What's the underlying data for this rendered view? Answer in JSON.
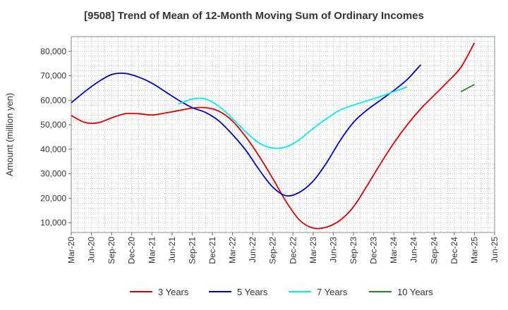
{
  "chart_data": {
    "type": "line",
    "title": "[9508]  Trend of Mean of 12-Month Moving Sum of Ordinary Incomes",
    "xlabel": "",
    "ylabel": "Amount (million yen)",
    "ylim": [
      6000,
      86000
    ],
    "yticks": [
      10000,
      20000,
      30000,
      40000,
      50000,
      60000,
      70000,
      80000
    ],
    "ytick_labels": [
      "10,000",
      "20,000",
      "30,000",
      "40,000",
      "50,000",
      "60,000",
      "70,000",
      "80,000"
    ],
    "x_tick_labels": [
      "Mar-20",
      "Jun-20",
      "Sep-20",
      "Dec-20",
      "Mar-21",
      "Jun-21",
      "Sep-21",
      "Dec-21",
      "Mar-22",
      "Jun-22",
      "Sep-22",
      "Dec-22",
      "Mar-23",
      "Jun-23",
      "Sep-23",
      "Dec-23",
      "Mar-24",
      "Jun-24",
      "Sep-24",
      "Dec-24",
      "Mar-25",
      "Jun-25"
    ],
    "grid": true,
    "legend_position": "bottom",
    "series": [
      {
        "name": "3 Years",
        "color": "#dd0000",
        "start_index": 0,
        "values": [
          53800,
          51000,
          50800,
          52800,
          54500,
          54500,
          54000,
          54800,
          55800,
          56800,
          57000,
          55500,
          51500,
          45000,
          37000,
          28000,
          18500,
          11000,
          7800,
          8200,
          11000,
          16500,
          25000,
          34000,
          42500,
          50000,
          56500,
          62000,
          67500,
          73500,
          83500
        ]
      },
      {
        "name": "5 Years",
        "color": "#0000cc",
        "start_index": 0,
        "values": [
          59000,
          63500,
          67500,
          70500,
          71000,
          69500,
          67000,
          63500,
          60000,
          57000,
          55000,
          51500,
          46000,
          39500,
          31500,
          24500,
          21000,
          22500,
          27000,
          34500,
          43500,
          51000,
          56000,
          60000,
          64000,
          68500,
          74500
        ]
      },
      {
        "name": "7 Years",
        "color": "#00eeee",
        "start_index": 8,
        "values": [
          58500,
          60500,
          60500,
          57500,
          52500,
          47000,
          42500,
          40500,
          41000,
          44000,
          48500,
          52500,
          56000,
          58000,
          59800,
          61500,
          63500,
          65500
        ]
      },
      {
        "name": "10 Years",
        "color": "#228822",
        "start_index": 29,
        "values": [
          63500,
          66500
        ]
      }
    ]
  }
}
